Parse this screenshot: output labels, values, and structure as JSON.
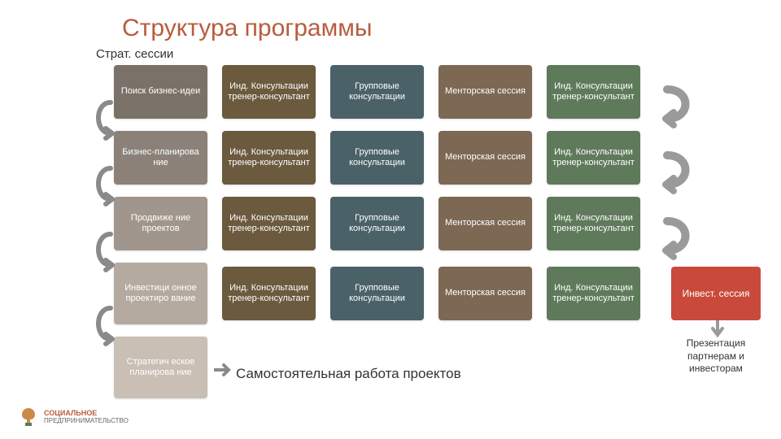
{
  "title": "Структура программы",
  "subtitle": "Страт. сессии",
  "selfwork": "Самостоятельная работа проектов",
  "invest_box": "Инвест. сессия",
  "presentation": "Презентация партнерам и инвесторам",
  "logo": {
    "line1": "СОЦИАЛЬНОЕ",
    "line2": "ПРЕДПРИНИМАТЕЛЬСТВО"
  },
  "colors": {
    "col1": [
      "#7a7268",
      "#8b8179",
      "#a0968d",
      "#b5aaa0",
      "#c9bfb5"
    ],
    "col2": "#6b5a3e",
    "col3": "#4a6168",
    "col4": "#7d6854",
    "col5": "#5f7a5b",
    "invest": "#c94a3b",
    "arrow": "#8a8a8a",
    "loop": "#9a9a9a"
  },
  "rows": [
    {
      "c1": "Поиск бизнес-идеи",
      "c2": "Инд. Консультации тренер-консультант",
      "c3": "Групповые консультации",
      "c4": "Менторская сессия",
      "c5": "Инд. Консультации тренер-консультант"
    },
    {
      "c1": "Бизнес-планирова ние",
      "c2": "Инд. Консультации тренер-консультант",
      "c3": "Групповые консультации",
      "c4": "Менторская сессия",
      "c5": "Инд. Консультации тренер-консультант"
    },
    {
      "c1": "Продвиже ние проектов",
      "c2": "Инд. Консультации тренер-консультант",
      "c3": "Групповые консультации",
      "c4": "Менторская сессия",
      "c5": "Инд. Консультации тренер-консультант"
    },
    {
      "c1": "Инвестици онное проектиро вание",
      "c2": "Инд. Консультации тренер-консультант",
      "c3": "Групповые консультации",
      "c4": "Менторская сессия",
      "c5": "Инд. Консультации тренер-консультант"
    },
    {
      "c1": "Стратегич еское планирова ние"
    }
  ]
}
